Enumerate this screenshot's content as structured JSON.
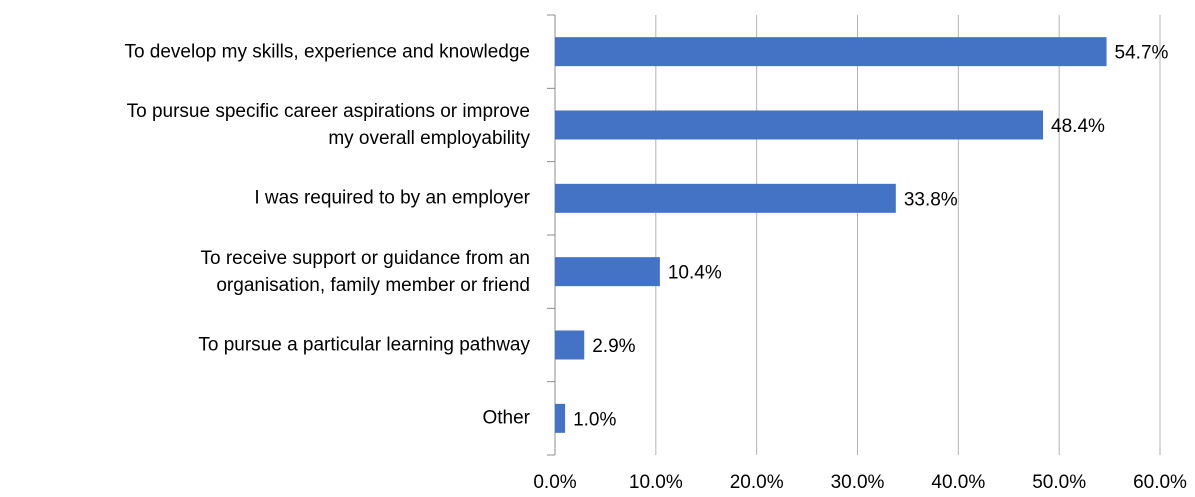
{
  "chart_data": {
    "type": "barh",
    "categories": [
      "To develop my skills, experience and knowledge",
      "To pursue specific career aspirations or improve\nmy overall employability",
      "I was required to by an employer",
      "To receive support or guidance from an\norganisation, family member or friend",
      "To pursue a particular learning pathway",
      "Other"
    ],
    "values": [
      54.7,
      48.4,
      33.8,
      10.4,
      2.9,
      1.0
    ],
    "value_labels": [
      "54.7%",
      "48.4%",
      "33.8%",
      "10.4%",
      "2.9%",
      "1.0%"
    ],
    "color": "#4472c4",
    "xlim": [
      0,
      60
    ],
    "xticks": [
      {
        "value": 0,
        "label": "0.0%"
      },
      {
        "value": 10,
        "label": "10.0%"
      },
      {
        "value": 20,
        "label": "20.0%"
      },
      {
        "value": 30,
        "label": "30.0%"
      },
      {
        "value": 40,
        "label": "40.0%"
      },
      {
        "value": 50,
        "label": "50.0%"
      },
      {
        "value": 60,
        "label": "60.0%"
      }
    ],
    "grid": true
  }
}
